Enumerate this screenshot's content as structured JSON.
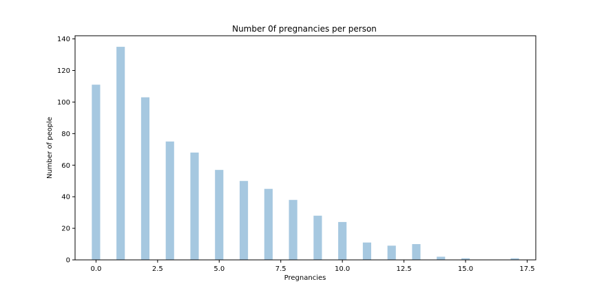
{
  "chart_data": {
    "type": "bar",
    "title": "Number 0f pregnancies per person",
    "xlabel": "Pregnancies",
    "ylabel": "Number of people",
    "xlim": [
      -0.85,
      17.85
    ],
    "ylim": [
      0,
      142
    ],
    "bar_width": 0.34,
    "bar_color": "#a6c8e0",
    "x_ticks": [
      0.0,
      2.5,
      5.0,
      7.5,
      10.0,
      12.5,
      15.0,
      17.5
    ],
    "x_tick_labels": [
      "0.0",
      "2.5",
      "5.0",
      "7.5",
      "10.0",
      "12.5",
      "15.0",
      "17.5"
    ],
    "y_ticks": [
      0,
      20,
      40,
      60,
      80,
      100,
      120,
      140
    ],
    "y_tick_labels": [
      "0",
      "20",
      "40",
      "60",
      "80",
      "100",
      "120",
      "140"
    ],
    "x": [
      0,
      1,
      2,
      3,
      4,
      5,
      6,
      7,
      8,
      9,
      10,
      11,
      12,
      13,
      14,
      15,
      17
    ],
    "values": [
      111,
      135,
      103,
      75,
      68,
      57,
      50,
      45,
      38,
      28,
      24,
      11,
      9,
      10,
      2,
      1,
      1
    ]
  }
}
